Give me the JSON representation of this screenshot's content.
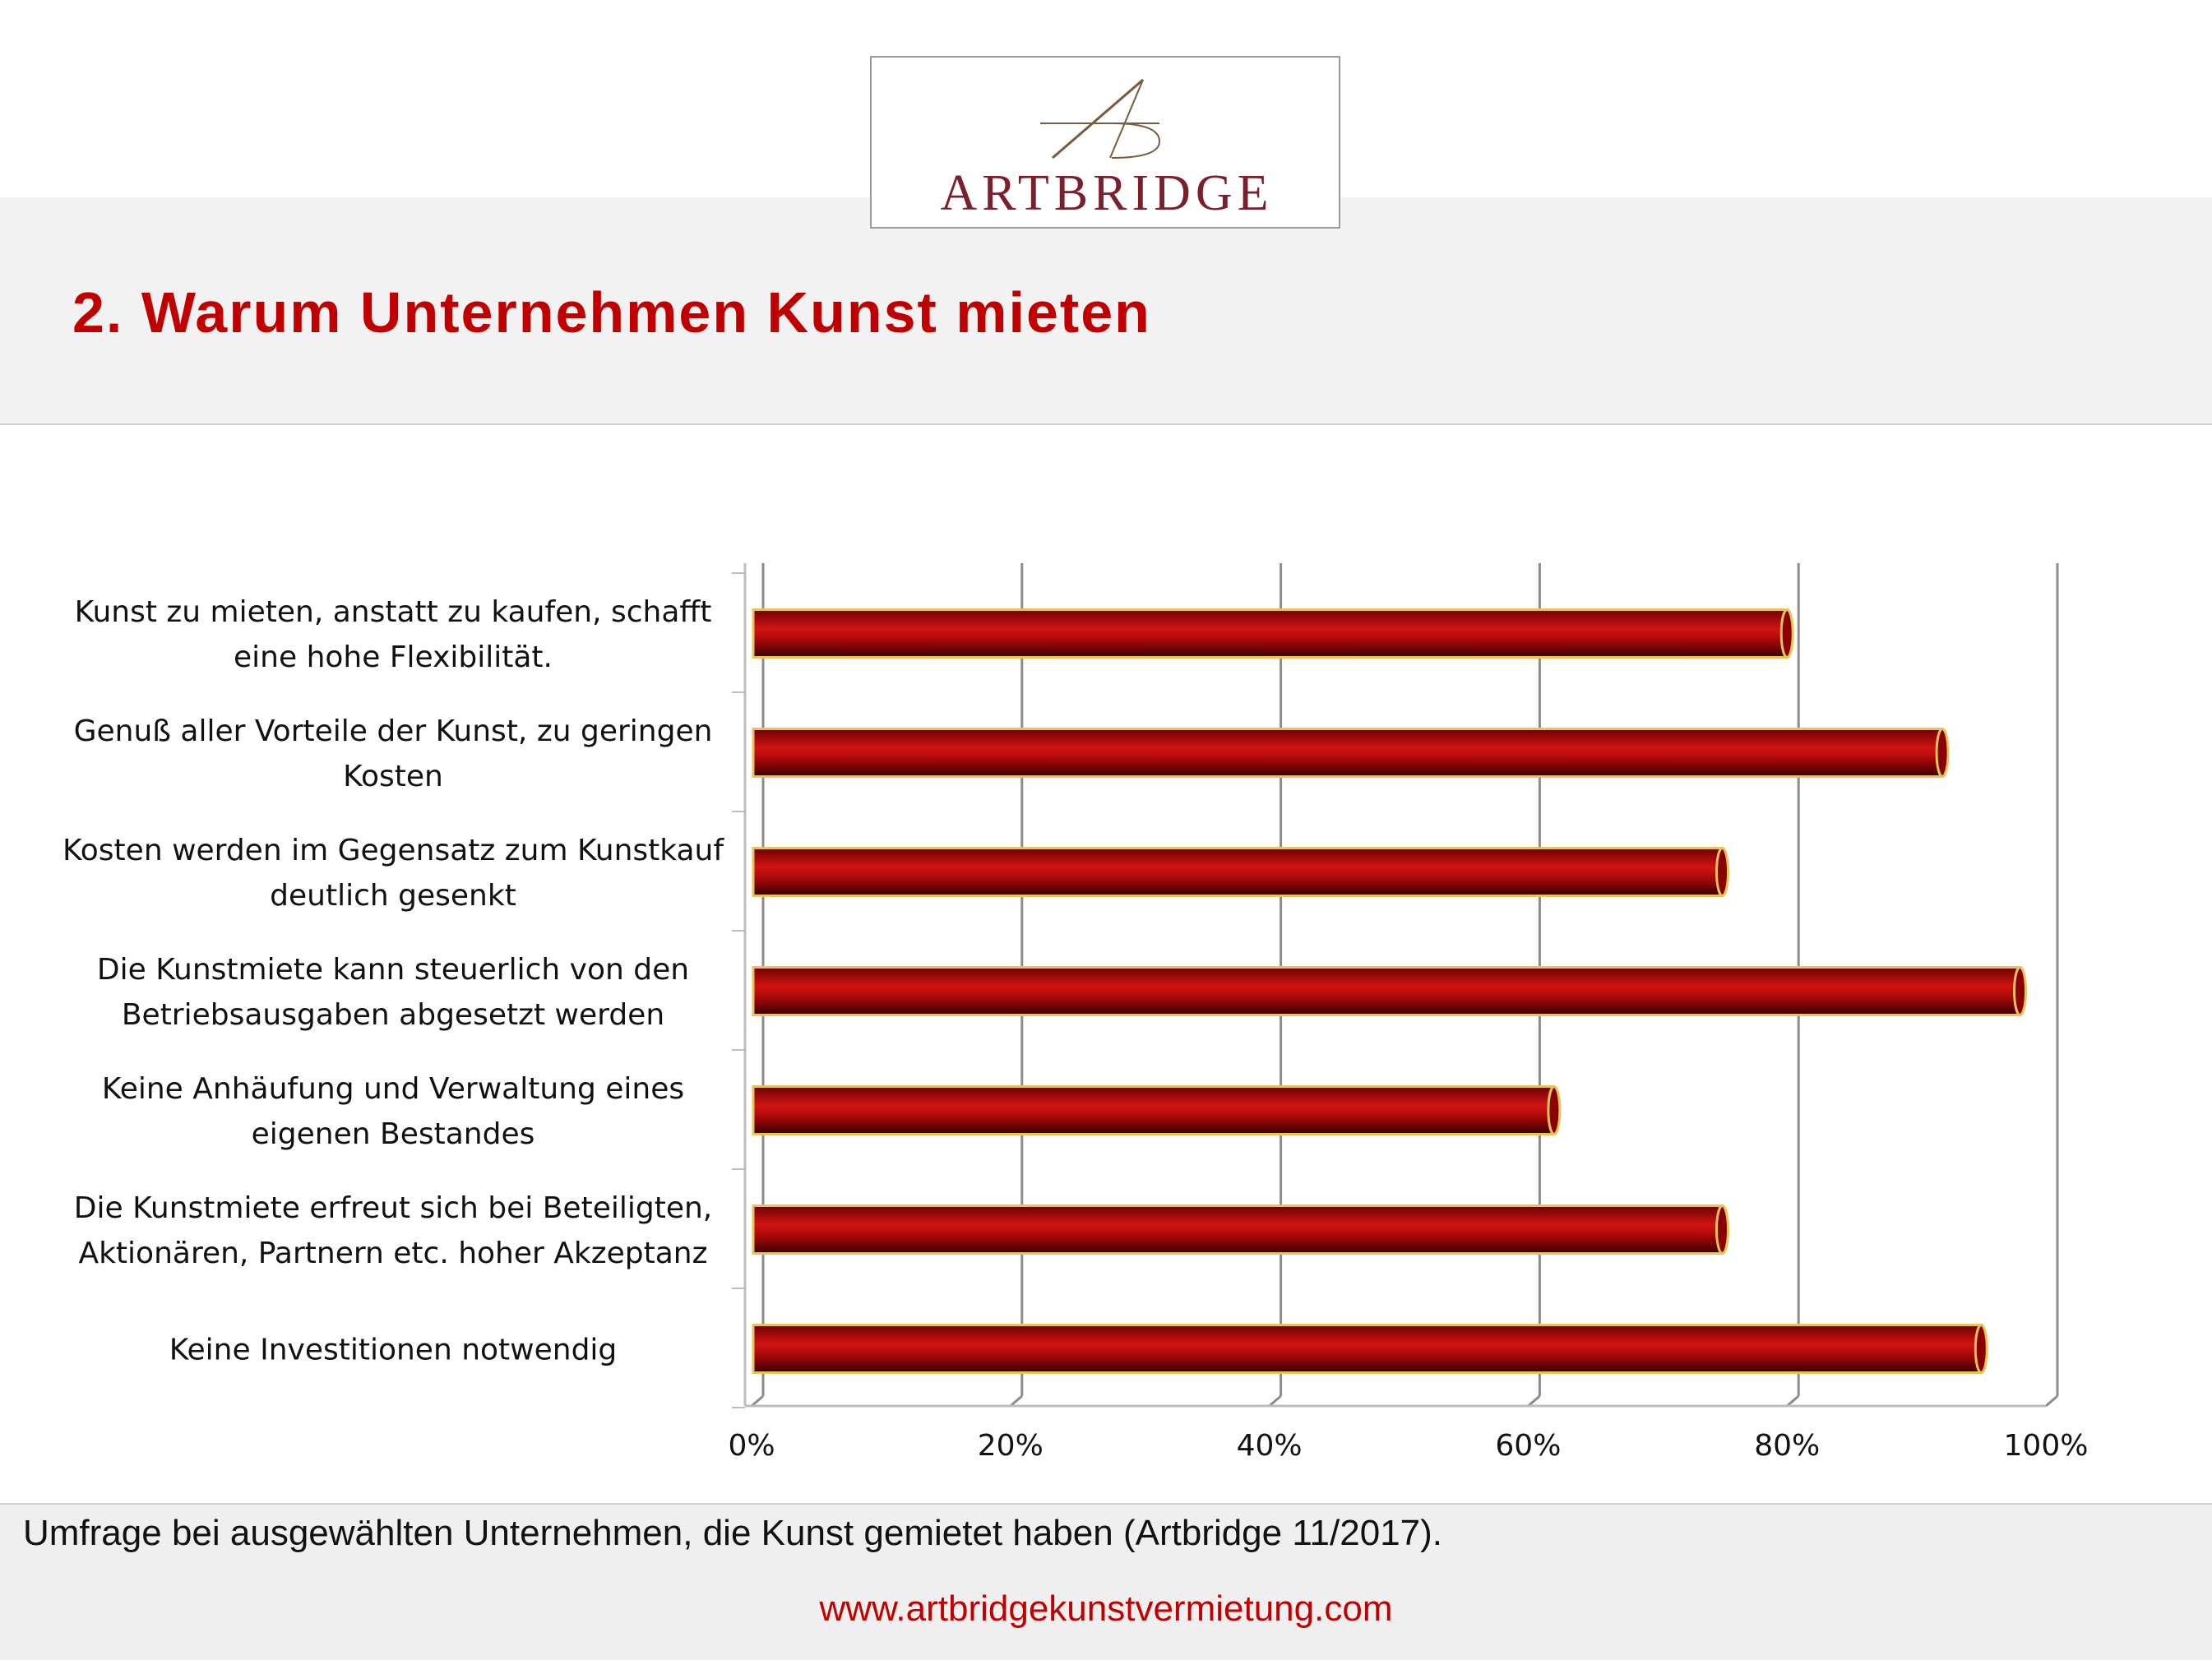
{
  "logo": {
    "text": "ARTBRIDGE"
  },
  "header": {
    "title": "2. Warum Unternehmen Kunst mieten"
  },
  "chart_data": {
    "type": "bar",
    "orientation": "horizontal",
    "categories": [
      [
        "Kunst zu mieten, anstatt zu kaufen, schafft",
        "eine hohe Flexibilität."
      ],
      [
        "Genuß aller Vorteile der Kunst, zu geringen",
        "Kosten"
      ],
      [
        "Kosten werden im Gegensatz zum Kunstkauf",
        "deutlich gesenkt"
      ],
      [
        "Die Kunstmiete kann steuerlich von den",
        "Betriebsausgaben abgesetzt werden"
      ],
      [
        "Keine Anhäufung und Verwaltung eines",
        "eigenen Bestandes"
      ],
      [
        "Die Kunstmiete erfreut sich bei Beteiligten,",
        "Aktionären, Partnern etc. hoher Akzeptanz"
      ],
      [
        "Keine Investitionen notwendig"
      ]
    ],
    "values": [
      80,
      92,
      75,
      98,
      62,
      75,
      95
    ],
    "xlim": [
      0,
      100
    ],
    "xticks": [
      "0%",
      "20%",
      "40%",
      "60%",
      "80%",
      "100%"
    ],
    "grid": true,
    "bar_color": "#b40a0a",
    "bar_outline_color": "#e8c25a"
  },
  "footer": {
    "note": "Umfrage bei ausgewählten Unternehmen, die Kunst gemietet haben (Artbridge 11/2017).",
    "url": "www.artbridgekunstvermietung.com"
  }
}
